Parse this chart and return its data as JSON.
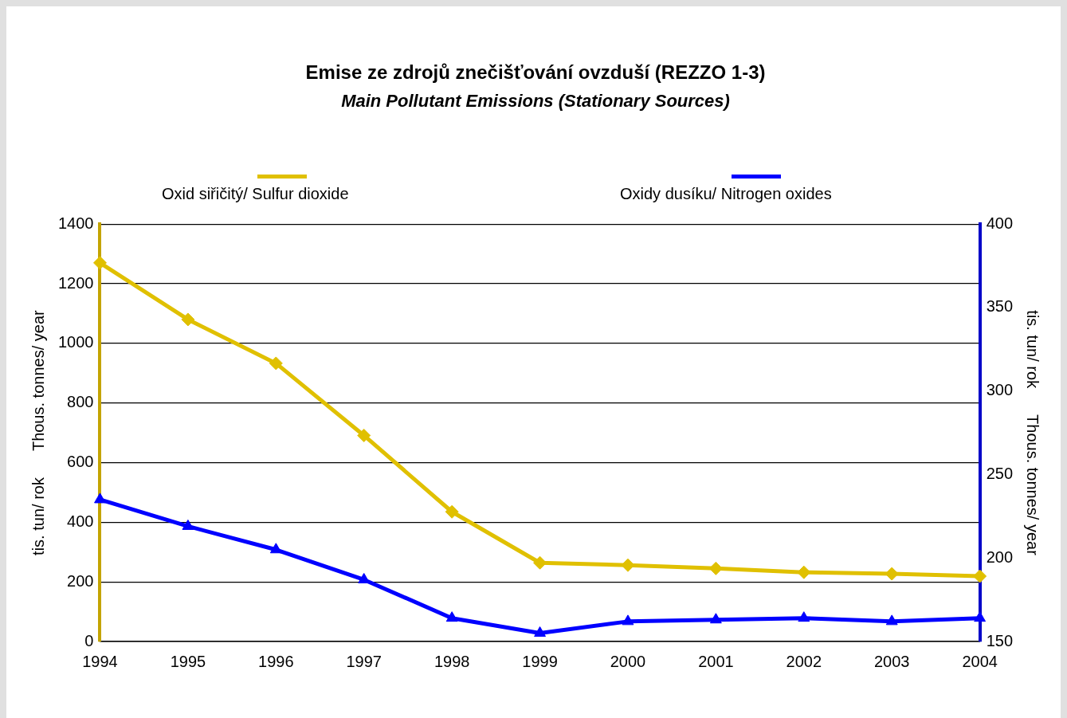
{
  "chart_data": {
    "type": "line",
    "title": "Emise ze zdrojů znečišťování ovzduší (REZZO 1-3)",
    "subtitle": "Main Pollutant Emissions (Stationary Sources)",
    "ylabel": "tis. tun/ rok      Thous. tonnes/ year",
    "y2label": "tis. tun/ rok      Thous. tonnes/ year",
    "categories": [
      "1994",
      "1995",
      "1996",
      "1997",
      "1998",
      "1999",
      "2000",
      "2001",
      "2002",
      "2003",
      "2004"
    ],
    "series": [
      {
        "name": "Oxid siřičitý/ Sulfur dioxide",
        "color": "#e0c000",
        "marker": "diamond",
        "values": [
          1270,
          1080,
          933,
          691,
          435,
          264,
          256,
          245,
          232,
          227,
          219
        ]
      },
      {
        "name": "Oxidy dusíku/ Nitrogen oxides",
        "color": "#0000ff",
        "marker": "triangle",
        "axis": "y2",
        "values": [
          235,
          219,
          205,
          187,
          164,
          155,
          162,
          163,
          164,
          162,
          164
        ]
      }
    ],
    "ylim": [
      0,
      1400
    ],
    "yticks": [
      0,
      200,
      400,
      600,
      800,
      1000,
      1200,
      1400
    ],
    "y2lim": [
      150,
      400
    ],
    "y2ticks": [
      150,
      200,
      250,
      300,
      350,
      400
    ],
    "grid": "y",
    "legend": "top",
    "line_style": "solid"
  }
}
